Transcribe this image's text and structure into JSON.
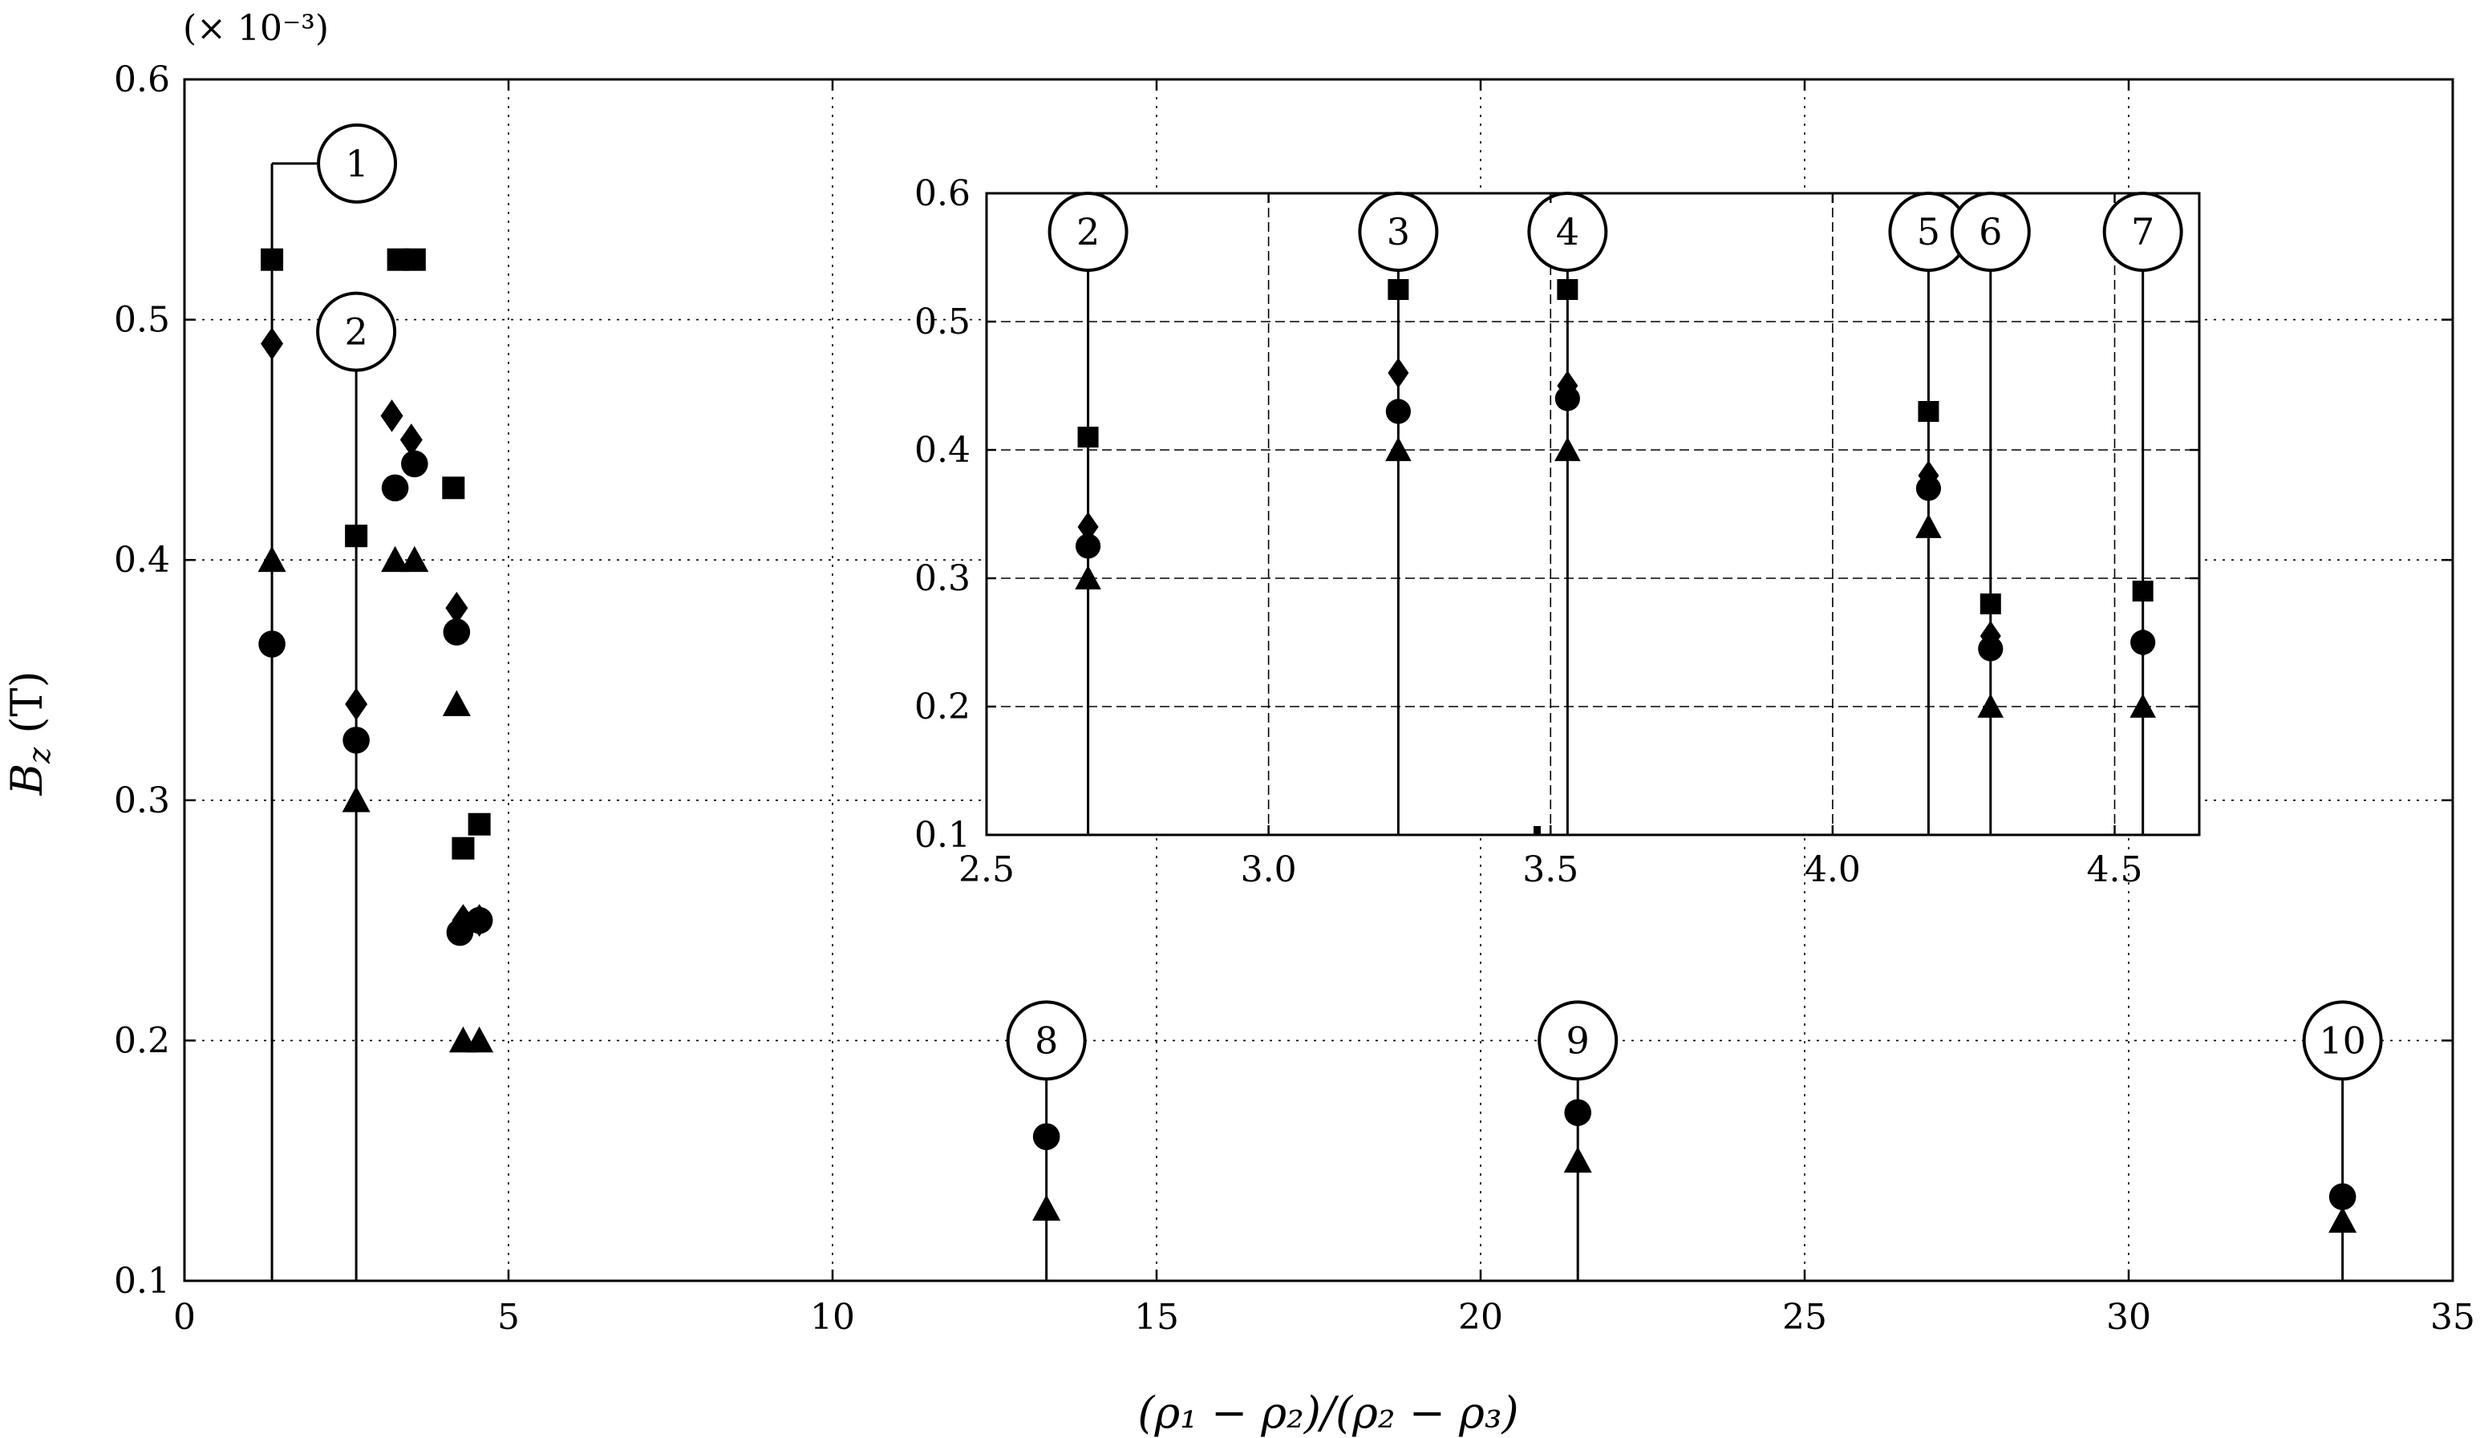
{
  "chart_data": [
    {
      "type": "scatter",
      "scale_note": "(× 10⁻³)",
      "xlabel": "(ρ₁ − ρ₂)/(ρ₂ − ρ₃)",
      "ylabel_main": "B",
      "ylabel_sub": "z",
      "ylabel_unit": " (T)",
      "xlim": [
        0,
        35
      ],
      "ylim": [
        0.1,
        0.6
      ],
      "xticks": [
        0,
        5,
        10,
        15,
        20,
        25,
        30,
        35
      ],
      "yticks": [
        0.1,
        0.2,
        0.3,
        0.4,
        0.5,
        0.6
      ],
      "grid": "dotted",
      "stems": [
        {
          "label": "1",
          "x": 1.35,
          "y_top": 0.565
        },
        {
          "label": "2",
          "x": 2.65,
          "y_top": 0.495
        },
        {
          "label": "8",
          "x": 13.3,
          "y_top": 0.2
        },
        {
          "label": "9",
          "x": 21.5,
          "y_top": 0.2
        },
        {
          "label": "10",
          "x": 33.3,
          "y_top": 0.2
        }
      ],
      "series": [
        {
          "marker": "square",
          "points": [
            [
              1.35,
              0.525
            ],
            [
              2.65,
              0.41
            ],
            [
              3.3,
              0.525
            ],
            [
              3.55,
              0.525
            ],
            [
              4.15,
              0.43
            ],
            [
              4.3,
              0.28
            ],
            [
              4.55,
              0.29
            ]
          ]
        },
        {
          "marker": "diamond",
          "points": [
            [
              1.35,
              0.49
            ],
            [
              2.65,
              0.34
            ],
            [
              3.2,
              0.46
            ],
            [
              3.5,
              0.45
            ],
            [
              4.2,
              0.38
            ],
            [
              4.3,
              0.25
            ],
            [
              4.55,
              0.25
            ]
          ]
        },
        {
          "marker": "triangle",
          "points": [
            [
              1.35,
              0.4
            ],
            [
              2.65,
              0.3
            ],
            [
              3.25,
              0.4
            ],
            [
              3.55,
              0.4
            ],
            [
              4.2,
              0.34
            ],
            [
              4.3,
              0.2
            ],
            [
              4.55,
              0.2
            ],
            [
              13.3,
              0.13
            ],
            [
              21.5,
              0.15
            ],
            [
              33.3,
              0.125
            ]
          ]
        },
        {
          "marker": "circle",
          "points": [
            [
              1.35,
              0.365
            ],
            [
              2.65,
              0.325
            ],
            [
              3.25,
              0.43
            ],
            [
              3.55,
              0.44
            ],
            [
              4.2,
              0.37
            ],
            [
              4.25,
              0.245
            ],
            [
              4.55,
              0.25
            ],
            [
              13.3,
              0.16
            ],
            [
              21.5,
              0.17
            ],
            [
              33.3,
              0.135
            ]
          ]
        }
      ]
    },
    {
      "type": "scatter",
      "xlim": [
        2.5,
        4.65
      ],
      "ylim": [
        0.1,
        0.6
      ],
      "xticks": [
        2.5,
        3.0,
        3.5,
        4.0,
        4.5
      ],
      "xtick_labels": [
        "2.5",
        "3.0",
        "3.5",
        "4.0",
        "4.5"
      ],
      "yticks": [
        0.1,
        0.2,
        0.3,
        0.4,
        0.5,
        0.6
      ],
      "grid": "dashed",
      "stems": [
        {
          "label": "2",
          "x": 2.68,
          "y_top": 0.57
        },
        {
          "label": "3",
          "x": 3.23,
          "y_top": 0.57
        },
        {
          "label": "4",
          "x": 3.53,
          "y_top": 0.57
        },
        {
          "label": "5",
          "x": 4.17,
          "y_top": 0.57
        },
        {
          "label": "6",
          "x": 4.28,
          "y_top": 0.57
        },
        {
          "label": "7",
          "x": 4.55,
          "y_top": 0.57
        }
      ],
      "series": [
        {
          "marker": "square",
          "points": [
            [
              2.68,
              0.41
            ],
            [
              3.23,
              0.525
            ],
            [
              3.53,
              0.525
            ],
            [
              4.17,
              0.43
            ],
            [
              4.28,
              0.28
            ],
            [
              4.55,
              0.29
            ]
          ]
        },
        {
          "marker": "diamond",
          "points": [
            [
              2.68,
              0.34
            ],
            [
              3.23,
              0.46
            ],
            [
              3.53,
              0.45
            ],
            [
              4.17,
              0.38
            ],
            [
              4.28,
              0.255
            ],
            [
              4.55,
              0.25
            ]
          ]
        },
        {
          "marker": "circle",
          "points": [
            [
              2.68,
              0.325
            ],
            [
              3.23,
              0.43
            ],
            [
              3.53,
              0.44
            ],
            [
              4.17,
              0.37
            ],
            [
              4.28,
              0.245
            ],
            [
              4.55,
              0.25
            ]
          ]
        },
        {
          "marker": "triangle",
          "points": [
            [
              2.68,
              0.3
            ],
            [
              3.23,
              0.4
            ],
            [
              3.53,
              0.4
            ],
            [
              4.17,
              0.34
            ],
            [
              4.28,
              0.2
            ],
            [
              4.55,
              0.2
            ]
          ]
        }
      ]
    }
  ]
}
